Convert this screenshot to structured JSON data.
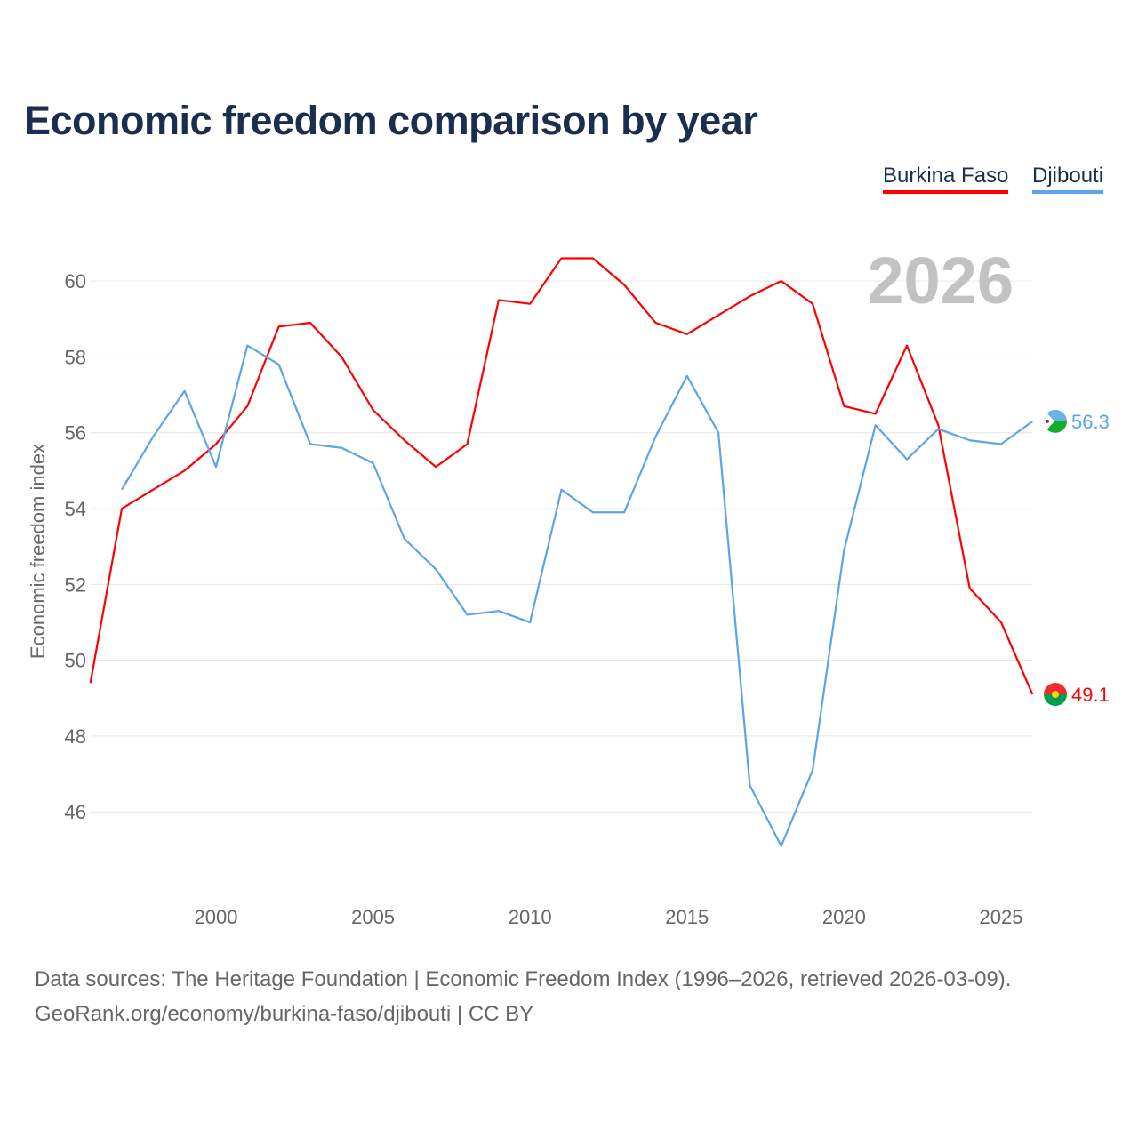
{
  "chart_data": {
    "type": "line",
    "title": "Economic freedom comparison by year",
    "ylabel": "Economic freedom index",
    "xlabel": "",
    "year_label": "2026",
    "xlim": [
      1996,
      2026
    ],
    "ylim": [
      44.2,
      61.55
    ],
    "yticks": [
      46,
      48,
      50,
      52,
      54,
      56,
      58,
      60
    ],
    "xticks": [
      2000,
      2005,
      2010,
      2015,
      2020,
      2025
    ],
    "grid": true,
    "legend": "top-right",
    "series": [
      {
        "name": "Burkina Faso",
        "color": "#ff0000",
        "end_label": "49.1",
        "x": [
          1996,
          1997,
          1998,
          1999,
          2000,
          2001,
          2002,
          2003,
          2004,
          2005,
          2006,
          2007,
          2008,
          2009,
          2010,
          2011,
          2012,
          2013,
          2014,
          2015,
          2016,
          2017,
          2018,
          2019,
          2020,
          2021,
          2022,
          2023,
          2024,
          2025,
          2026
        ],
        "values": [
          49.4,
          54.0,
          54.5,
          55.0,
          55.7,
          56.7,
          58.8,
          58.9,
          58.0,
          56.6,
          55.8,
          55.1,
          55.7,
          59.5,
          59.4,
          60.6,
          60.6,
          59.9,
          58.9,
          58.6,
          59.1,
          59.6,
          60.0,
          59.4,
          56.7,
          56.5,
          58.3,
          56.2,
          51.9,
          51.0,
          49.1
        ]
      },
      {
        "name": "Djibouti",
        "color": "#5ba4e8",
        "end_label": "56.3",
        "x": [
          1997,
          1998,
          1999,
          2000,
          2001,
          2002,
          2003,
          2004,
          2005,
          2006,
          2007,
          2008,
          2009,
          2010,
          2011,
          2012,
          2013,
          2014,
          2015,
          2016,
          2017,
          2018,
          2019,
          2020,
          2021,
          2022,
          2023,
          2024,
          2025,
          2026
        ],
        "values": [
          54.5,
          55.9,
          57.1,
          55.1,
          58.3,
          57.8,
          55.7,
          55.6,
          55.2,
          53.2,
          52.4,
          51.2,
          51.3,
          51.0,
          54.5,
          53.9,
          53.9,
          55.9,
          57.5,
          56.0,
          46.7,
          45.1,
          47.1,
          52.9,
          56.2,
          55.3,
          56.1,
          55.8,
          55.7,
          56.3
        ]
      }
    ]
  },
  "source_line1": "Data sources: The Heritage Foundation | Economic Freedom Index (1996–2026, retrieved 2026-03-09).",
  "source_line2": "GeoRank.org/economy/burkina-faso/djibouti | CC BY"
}
